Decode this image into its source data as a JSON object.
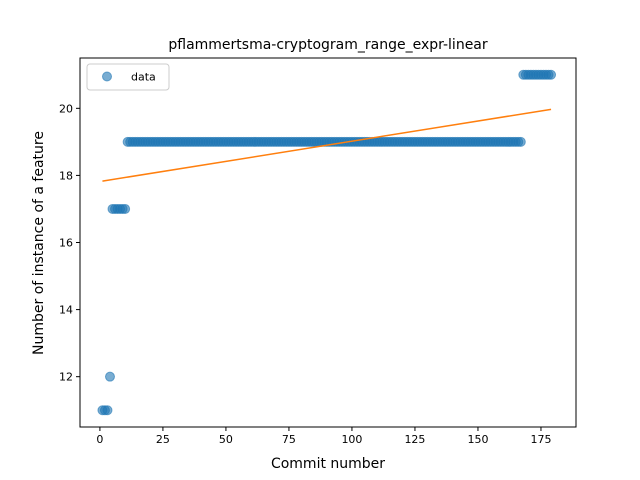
{
  "chart_data": {
    "type": "scatter",
    "title": "pflammertsma-cryptogram_range_expr-linear",
    "xlabel": "Commit number",
    "ylabel": "Number of instance of a feature",
    "xlim": [
      -7.9,
      188.9
    ],
    "ylim": [
      10.5,
      21.5
    ],
    "xticks": [
      0,
      25,
      50,
      75,
      100,
      125,
      150,
      175
    ],
    "yticks": [
      12,
      14,
      16,
      18,
      20
    ],
    "grid": false,
    "legend_position": "top-left",
    "series": [
      {
        "name": "data",
        "kind": "points",
        "color": "#1f77b4",
        "runs": [
          {
            "x_start": 1,
            "x_end": 3,
            "y": 11
          },
          {
            "x_start": 4,
            "x_end": 4,
            "y": 12
          },
          {
            "x_start": 5,
            "x_end": 10,
            "y": 17
          },
          {
            "x_start": 11,
            "x_end": 167,
            "y": 19
          },
          {
            "x_start": 168,
            "x_end": 179,
            "y": 21
          }
        ]
      },
      {
        "kind": "line",
        "color": "#ff7f0e",
        "points": [
          [
            1,
            17.83
          ],
          [
            179,
            19.97
          ]
        ]
      }
    ]
  }
}
